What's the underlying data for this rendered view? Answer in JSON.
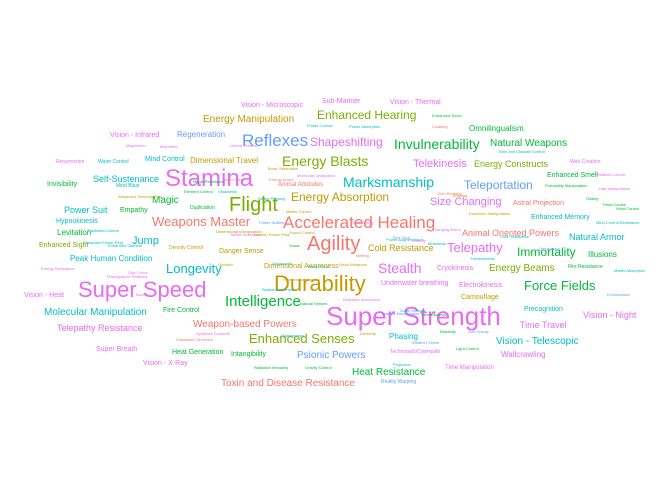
{
  "chart_data": {
    "type": "wordcloud",
    "words": [
      {
        "text": "Super Strength",
        "color": "#E76BF3"
      },
      {
        "text": "Durability",
        "color": "#C49A00"
      },
      {
        "text": "Super Speed",
        "color": "#E76BF3"
      },
      {
        "text": "Flight",
        "color": "#7CAE00"
      },
      {
        "text": "Stamina",
        "color": "#E76BF3"
      },
      {
        "text": "Accelerated Healing",
        "color": "#F8766D"
      },
      {
        "text": "Agility",
        "color": "#F8766D"
      },
      {
        "text": "Reflexes",
        "color": "#619CFF"
      },
      {
        "text": "Intelligence",
        "color": "#00BA38"
      },
      {
        "text": "Energy Blasts",
        "color": "#7CAE00"
      },
      {
        "text": "Invulnerability",
        "color": "#00BA38"
      },
      {
        "text": "Marksmanship",
        "color": "#00BFC4"
      },
      {
        "text": "Weapons Master",
        "color": "#F8766D"
      },
      {
        "text": "Longevity",
        "color": "#00BFC4"
      },
      {
        "text": "Stealth",
        "color": "#E76BF3"
      },
      {
        "text": "Force Fields",
        "color": "#00BA38"
      },
      {
        "text": "Enhanced Senses",
        "color": "#7CAE00"
      },
      {
        "text": "Energy Absorption",
        "color": "#C49A00"
      },
      {
        "text": "Telepathy",
        "color": "#E76BF3"
      },
      {
        "text": "Shapeshifting",
        "color": "#E76BF3"
      },
      {
        "text": "Enhanced Hearing",
        "color": "#7CAE00"
      },
      {
        "text": "Telekinesis",
        "color": "#E76BF3"
      },
      {
        "text": "Teleportation",
        "color": "#619CFF"
      },
      {
        "text": "Energy Manipulation",
        "color": "#C49A00"
      },
      {
        "text": "Size Changing",
        "color": "#E76BF3"
      },
      {
        "text": "Immortality",
        "color": "#00BA38"
      },
      {
        "text": "Weapon-based Powers",
        "color": "#F8766D"
      },
      {
        "text": "Molecular Manipulation",
        "color": "#00BFC4"
      },
      {
        "text": "Natural Weapons",
        "color": "#00BA38"
      },
      {
        "text": "Energy Beams",
        "color": "#7CAE00"
      },
      {
        "text": "Energy Constructs",
        "color": "#7CAE00"
      },
      {
        "text": "Vision - Telescopic",
        "color": "#00BFC4"
      },
      {
        "text": "Vision - Night",
        "color": "#E76BF3"
      },
      {
        "text": "Toxin and Disease Resistance",
        "color": "#F8766D"
      },
      {
        "text": "Heat Resistance",
        "color": "#00BA38"
      },
      {
        "text": "Psionic Powers",
        "color": "#619CFF"
      },
      {
        "text": "Telepathy Resistance",
        "color": "#E76BF3"
      },
      {
        "text": "Jump",
        "color": "#00BFC4"
      },
      {
        "text": "Cold Resistance",
        "color": "#C49A00"
      },
      {
        "text": "Animal Oriented Powers",
        "color": "#F8766D"
      },
      {
        "text": "Natural Armor",
        "color": "#00BFC4"
      },
      {
        "text": "Time Travel",
        "color": "#E76BF3"
      },
      {
        "text": "Power Suit",
        "color": "#00BFC4"
      },
      {
        "text": "Magic",
        "color": "#00BA38"
      },
      {
        "text": "Self-Sustenance",
        "color": "#00BFC4"
      },
      {
        "text": "Regeneration",
        "color": "#619CFF"
      },
      {
        "text": "Dimensional Travel",
        "color": "#C49A00"
      },
      {
        "text": "Mind Control",
        "color": "#00BFC4"
      },
      {
        "text": "Omnilingualism",
        "color": "#00BA38"
      },
      {
        "text": "Peak Human Condition",
        "color": "#00BFC4"
      },
      {
        "text": "Empathy",
        "color": "#00BA38"
      },
      {
        "text": "Hypnokinesis",
        "color": "#00BFC4"
      },
      {
        "text": "Levitation",
        "color": "#00BA38"
      },
      {
        "text": "Enhanced Sight",
        "color": "#7CAE00"
      },
      {
        "text": "Underwater breathing",
        "color": "#E76BF3"
      },
      {
        "text": "Electrokinesis",
        "color": "#E76BF3"
      },
      {
        "text": "Cryokinesis",
        "color": "#E76BF3"
      },
      {
        "text": "Camouflage",
        "color": "#C49A00"
      },
      {
        "text": "Precognition",
        "color": "#00BFC4"
      },
      {
        "text": "Wallcrawling",
        "color": "#E76BF3"
      },
      {
        "text": "Illusions",
        "color": "#00BA38"
      },
      {
        "text": "Enhanced Memory",
        "color": "#00BFC4"
      },
      {
        "text": "Enhanced Smell",
        "color": "#00BA38"
      },
      {
        "text": "Astral Projection",
        "color": "#F8766D"
      },
      {
        "text": "Phasing",
        "color": "#00BFC4"
      },
      {
        "text": "Intangibility",
        "color": "#00BA38"
      },
      {
        "text": "Vision - Infrared",
        "color": "#E76BF3"
      },
      {
        "text": "Vision - Microscopic",
        "color": "#E76BF3"
      },
      {
        "text": "Vision - Thermal",
        "color": "#E76BF3"
      },
      {
        "text": "Vision - X-Ray",
        "color": "#E76BF3"
      },
      {
        "text": "Vision - Heat",
        "color": "#E76BF3"
      },
      {
        "text": "Sub-Mariner",
        "color": "#E76BF3"
      },
      {
        "text": "Super Breath",
        "color": "#E76BF3"
      },
      {
        "text": "Heat Generation",
        "color": "#00BA38"
      },
      {
        "text": "Fire Control",
        "color": "#00BA38"
      },
      {
        "text": "Invisibility",
        "color": "#00BA38"
      },
      {
        "text": "Resurrection",
        "color": "#E76BF3"
      },
      {
        "text": "Dimensional Awareness",
        "color": "#C49A00"
      },
      {
        "text": "Danger Sense",
        "color": "#C49A00"
      },
      {
        "text": "Animal Attributes",
        "color": "#F8766D"
      },
      {
        "text": "Duplication",
        "color": "#00BA38"
      },
      {
        "text": "Web Creation",
        "color": "#E76BF3"
      },
      {
        "text": "Time Manipulation",
        "color": "#E76BF3"
      },
      {
        "text": "Technopath/Cyberpath",
        "color": "#E76BF3"
      },
      {
        "text": "Reality Warping",
        "color": "#619CFF"
      },
      {
        "text": "Gravity Control",
        "color": "#00BA38"
      },
      {
        "text": "Radiation Immunity",
        "color": "#00BA38"
      },
      {
        "text": "Substance Secretion",
        "color": "#F8766D"
      },
      {
        "text": "Density Control",
        "color": "#C49A00"
      },
      {
        "text": "Magnetism",
        "color": "#E76BF3"
      },
      {
        "text": "Water Control",
        "color": "#00BFC4"
      },
      {
        "text": "Mind Blast",
        "color": "#00BFC4"
      },
      {
        "text": "Power Absorption",
        "color": "#00BFC4"
      },
      {
        "text": "Toxin and Disease Control",
        "color": "#00BFC4"
      },
      {
        "text": "Mind Control Resistance",
        "color": "#00BFC4"
      },
      {
        "text": "Matter Absorption",
        "color": "#00BFC4"
      },
      {
        "text": "Lantern Power Ring",
        "color": "#C49A00"
      },
      {
        "text": "Power Cosmic",
        "color": "#00BFC4"
      },
      {
        "text": "Cloaking",
        "color": "#F8766D"
      },
      {
        "text": "Enhanced Touch",
        "color": "#00BA38"
      },
      {
        "text": "Fire Resistance",
        "color": "#00BA38"
      },
      {
        "text": "Elasticity",
        "color": "#00BA38"
      },
      {
        "text": "Darkforce Manipulation",
        "color": "#C49A00"
      },
      {
        "text": "Light Control",
        "color": "#00BA38"
      },
      {
        "text": "Radiation Absorption",
        "color": "#E76BF3"
      },
      {
        "text": "Teleported",
        "color": "#E76BF3"
      },
      {
        "text": "Sonic Scream",
        "color": "#00BFC4"
      },
      {
        "text": "Weather Control",
        "color": "#E76BF3"
      },
      {
        "text": "Gliding",
        "color": "#00BA38"
      },
      {
        "text": "Plant Control",
        "color": "#00BA38"
      },
      {
        "text": "Probability Manipulation",
        "color": "#00BA38"
      },
      {
        "text": "Energy Resistance",
        "color": "#E76BF3"
      },
      {
        "text": "Element Control",
        "color": "#00BA38"
      },
      {
        "text": "Radiation Control",
        "color": "#00BFC4"
      },
      {
        "text": "Vitakinesis",
        "color": "#00BFC4"
      },
      {
        "text": "Enhanced Stamina",
        "color": "#00BFC4"
      },
      {
        "text": "Odin Force",
        "color": "#E76BF3"
      },
      {
        "text": "Hair Manipulation",
        "color": "#E76BF3"
      },
      {
        "text": "Sound Control",
        "color": "#C49A00"
      },
      {
        "text": "Photographic Reflexes",
        "color": "#E76BF3"
      },
      {
        "text": "Advanced Technopathics",
        "color": "#C49A00"
      },
      {
        "text": "Magic Resistance",
        "color": "#00BA38"
      },
      {
        "text": "Qwardian Power Ring",
        "color": "#00BFC4"
      },
      {
        "text": "Wind Control",
        "color": "#00BA38"
      },
      {
        "text": "Banish",
        "color": "#E76BF3"
      },
      {
        "text": "Echolocation",
        "color": "#619CFF"
      },
      {
        "text": "Power Augmentation",
        "color": "#00BFC4"
      },
      {
        "text": "Sonar",
        "color": "#00BA38"
      },
      {
        "text": "Omnipotent",
        "color": "#619CFF"
      },
      {
        "text": "Power Nullifier",
        "color": "#619CFF"
      },
      {
        "text": "Insanity",
        "color": "#E76BF3"
      },
      {
        "text": "Speed Force",
        "color": "#F8766D"
      },
      {
        "text": "Omniscient",
        "color": "#00BFC4"
      },
      {
        "text": "Omnitrix",
        "color": "#C49A00"
      },
      {
        "text": "Energy Armor",
        "color": "#F8766D"
      },
      {
        "text": "Biokinesis",
        "color": "#00BFC4"
      },
      {
        "text": "Summoning",
        "color": "#E76BF3"
      },
      {
        "text": "Thirstokinesis",
        "color": "#00BFC4"
      },
      {
        "text": "Changing Armor",
        "color": "#E76BF3"
      },
      {
        "text": "Wishing",
        "color": "#C49A00"
      },
      {
        "text": "Spatial Awareness",
        "color": "#00BFC4"
      },
      {
        "text": "Hyperkinesis",
        "color": "#00BFC4"
      },
      {
        "text": "Melting",
        "color": "#F8766D"
      },
      {
        "text": "Grim Reaping",
        "color": "#F8766D"
      },
      {
        "text": "Projection",
        "color": "#00BFC4"
      },
      {
        "text": "Tactile Deflection",
        "color": "#E76BF3"
      },
      {
        "text": "Omni-Weapons",
        "color": "#C49A00"
      },
      {
        "text": "Bone Generation",
        "color": "#C49A00"
      },
      {
        "text": "Hyperconsciousness",
        "color": "#C49A00"
      },
      {
        "text": "Nova Force",
        "color": "#00BFC4"
      },
      {
        "text": "Shadow Manipulation",
        "color": "#619CFF"
      },
      {
        "text": "Thermokinesis",
        "color": "#00BA38"
      },
      {
        "text": "Sense Phasing",
        "color": "#00BFC4"
      },
      {
        "text": "Dimensional Manipulation",
        "color": "#C49A00"
      },
      {
        "text": "Molecular Dissipation",
        "color": "#E76BF3"
      },
      {
        "text": "Symbiote Costume",
        "color": "#E76BF3"
      },
      {
        "text": "Anti-Gravity",
        "color": "#619CFF"
      },
      {
        "text": "Dexterity",
        "color": "#C49A00"
      },
      {
        "text": "Time Stop",
        "color": "#619CFF"
      },
      {
        "text": "Cold Resistance",
        "color": "#00BFC4"
      },
      {
        "text": "Natural Senses",
        "color": "#00BA38"
      },
      {
        "text": "Weather Sense",
        "color": "#619CFF"
      },
      {
        "text": "Unholy Powers",
        "color": "#E76BF3"
      },
      {
        "text": "Matter Control",
        "color": "#C49A00"
      }
    ]
  }
}
